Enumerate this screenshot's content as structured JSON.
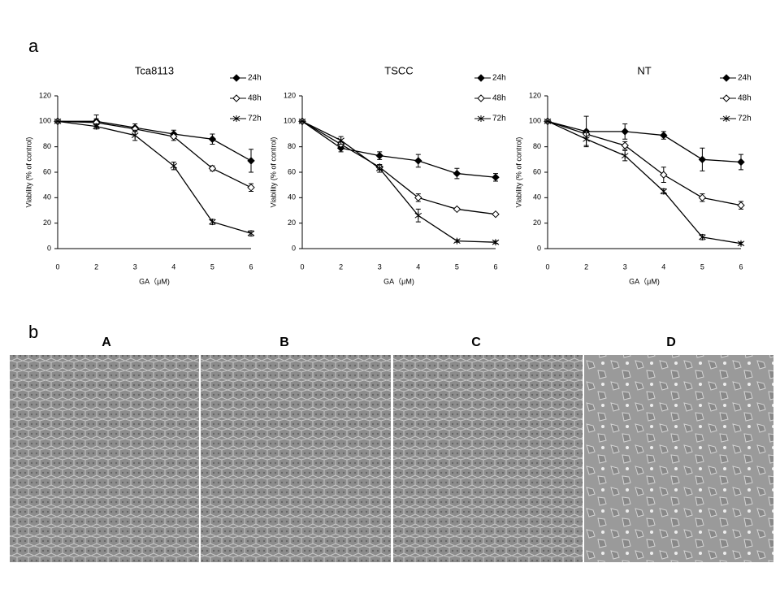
{
  "panel_labels": [
    "a",
    "b"
  ],
  "chart_data": [
    {
      "type": "line",
      "title": "Tca8113",
      "x_label": "GA（μM)",
      "y_label": "Viability  (% of control)",
      "categories": [
        "0",
        "2",
        "3",
        "4",
        "5",
        "6"
      ],
      "ylim": [
        0,
        120
      ],
      "yticks": [
        0,
        20,
        40,
        60,
        80,
        100,
        120
      ],
      "series": [
        {
          "name": "24h",
          "color": "#000000",
          "marker": "filled-diamond",
          "values": [
            100,
            100,
            95,
            90,
            86,
            69
          ],
          "errors": [
            0,
            5,
            3,
            3,
            4,
            9
          ]
        },
        {
          "name": "48h",
          "color": "#000000",
          "marker": "open-diamond",
          "values": [
            100,
            99,
            94,
            88,
            63,
            48
          ],
          "errors": [
            0,
            3,
            2,
            3,
            2,
            3
          ]
        },
        {
          "name": "72h",
          "color": "#000000",
          "marker": "x",
          "values": [
            100,
            96,
            89,
            65,
            21,
            12
          ],
          "errors": [
            0,
            2,
            4,
            3,
            2,
            2
          ]
        }
      ]
    },
    {
      "type": "line",
      "title": "TSCC",
      "x_label": "GA（μM)",
      "y_label": "Viability  (% of control)",
      "categories": [
        "0",
        "2",
        "3",
        "4",
        "5",
        "6"
      ],
      "ylim": [
        0,
        120
      ],
      "yticks": [
        0,
        20,
        40,
        60,
        80,
        100,
        120
      ],
      "series": [
        {
          "name": "24h",
          "color": "#000000",
          "marker": "filled-diamond",
          "values": [
            100,
            79,
            73,
            69,
            59,
            56
          ],
          "errors": [
            0,
            3,
            3,
            5,
            4,
            3
          ]
        },
        {
          "name": "48h",
          "color": "#000000",
          "marker": "open-diamond",
          "values": [
            100,
            82,
            64,
            40,
            31,
            27
          ],
          "errors": [
            0,
            2,
            2,
            3,
            1,
            1
          ]
        },
        {
          "name": "72h",
          "color": "#000000",
          "marker": "x",
          "values": [
            100,
            85,
            63,
            26,
            6,
            5
          ],
          "errors": [
            0,
            3,
            3,
            5,
            1,
            1
          ]
        }
      ]
    },
    {
      "type": "line",
      "title": "NT",
      "x_label": "GA（μM)",
      "y_label": "Viability  (% of control)",
      "categories": [
        "0",
        "2",
        "3",
        "4",
        "5",
        "6"
      ],
      "ylim": [
        0,
        120
      ],
      "yticks": [
        0,
        20,
        40,
        60,
        80,
        100,
        120
      ],
      "series": [
        {
          "name": "24h",
          "color": "#000000",
          "marker": "filled-diamond",
          "values": [
            100,
            92,
            92,
            89,
            70,
            68
          ],
          "errors": [
            0,
            12,
            6,
            3,
            9,
            6
          ]
        },
        {
          "name": "48h",
          "color": "#000000",
          "marker": "open-diamond",
          "values": [
            100,
            90,
            81,
            58,
            40,
            34
          ],
          "errors": [
            0,
            3,
            3,
            6,
            3,
            3
          ]
        },
        {
          "name": "72h",
          "color": "#000000",
          "marker": "x",
          "values": [
            100,
            86,
            73,
            45,
            9,
            4
          ],
          "errors": [
            0,
            5,
            4,
            2,
            2,
            1
          ]
        }
      ]
    }
  ],
  "images": [
    {
      "label": "A"
    },
    {
      "label": "B"
    },
    {
      "label": "C"
    },
    {
      "label": "D"
    }
  ]
}
